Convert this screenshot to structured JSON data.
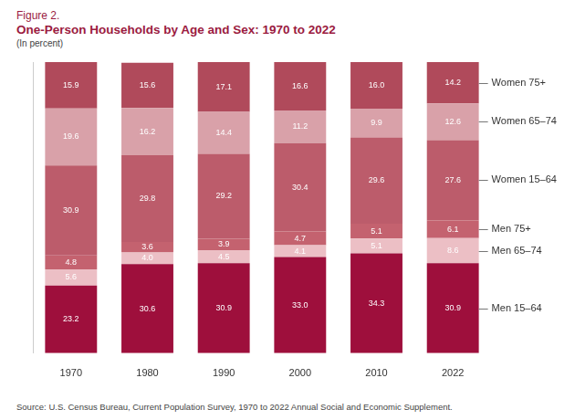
{
  "chart_data": {
    "type": "bar",
    "title": "Figure 2.",
    "subtitle": "One-Person Households by Age and Sex: 1970 to 2022",
    "y_label": "(In percent)",
    "source": "Source: U.S. Census Bureau, Current Population Survey, 1970 to 2022 Annual Social and Economic Supplement.",
    "categories": [
      "1970",
      "1980",
      "1990",
      "2000",
      "2010",
      "2022"
    ],
    "stacked": true,
    "data_labels": true,
    "grid": false,
    "tick_labels": "x",
    "ylim": [
      0,
      100
    ],
    "series": [
      {
        "name": "Men 15–64",
        "color": "#9e0f3c",
        "values": [
          23.2,
          30.6,
          30.9,
          33.0,
          34.3,
          30.9
        ],
        "value_labels": [
          "23.2",
          "30.6",
          "30.9",
          "33.0",
          "34.3",
          "30.9"
        ]
      },
      {
        "name": "Men 65–74",
        "color": "#ecbfc5",
        "values": [
          5.6,
          4.0,
          4.5,
          4.1,
          5.1,
          8.6
        ],
        "value_labels": [
          "5.6",
          "4.0",
          "4.5",
          "4.1",
          "5.1",
          "8.6"
        ]
      },
      {
        "name": "Men 75+",
        "color": "#c4626f",
        "values": [
          4.8,
          3.6,
          3.9,
          4.7,
          5.1,
          6.1
        ],
        "value_labels": [
          "4.8",
          "3.6",
          "3.9",
          "4.7",
          "5.1",
          "6.1"
        ]
      },
      {
        "name": "Women 15–64",
        "color": "#bc5c6b",
        "values": [
          30.9,
          29.8,
          29.2,
          30.4,
          29.6,
          27.6
        ],
        "value_labels": [
          "30.9",
          "29.8",
          "29.2",
          "30.4",
          "29.6",
          "27.6"
        ]
      },
      {
        "name": "Women 65–74",
        "color": "#d9a1a9",
        "values": [
          19.6,
          16.2,
          14.4,
          11.2,
          9.9,
          12.6
        ],
        "value_labels": [
          "19.6",
          "16.2",
          "14.4",
          "11.2",
          "9.9",
          "12.6"
        ]
      },
      {
        "name": "Women 75+",
        "color": "#b04a5b",
        "values": [
          15.9,
          15.6,
          17.1,
          16.6,
          16.0,
          14.2
        ],
        "value_labels": [
          "15.9",
          "15.6",
          "17.1",
          "16.6",
          "16.0",
          "14.2"
        ]
      }
    ]
  }
}
